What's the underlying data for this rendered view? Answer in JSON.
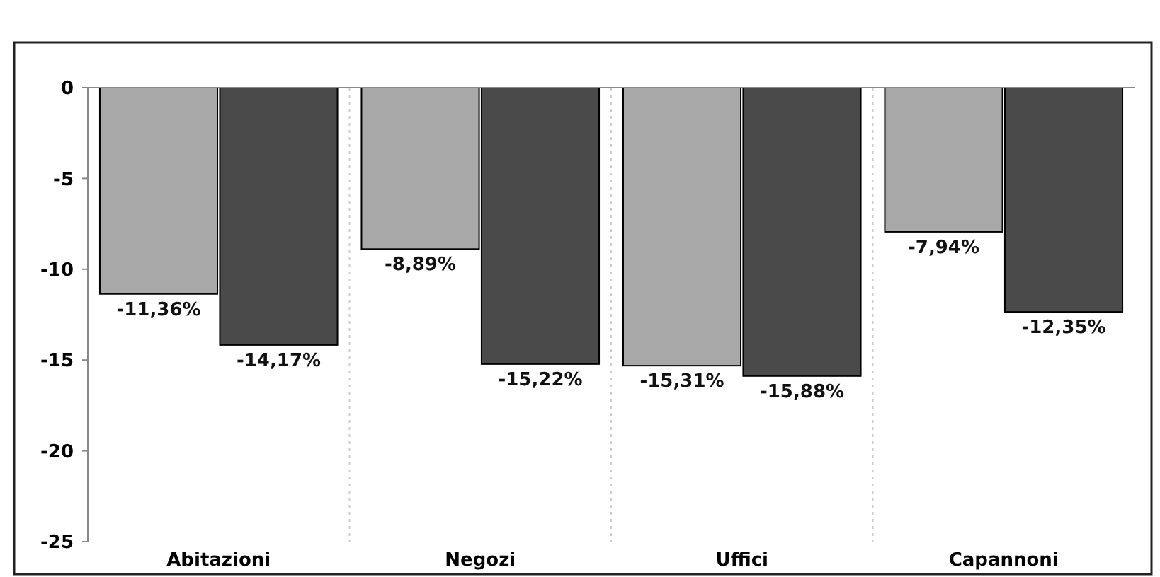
{
  "chart_data": {
    "type": "bar",
    "categories": [
      "Abitazioni",
      "Negozi",
      "Uffici",
      "Capannoni"
    ],
    "series": [
      {
        "color": "#a8a8a8",
        "values": [
          -11.36,
          -8.89,
          -15.31,
          -7.94
        ],
        "value_labels": [
          "-11,36%",
          "-8,89%",
          "-15,31%",
          "-7,94%"
        ]
      },
      {
        "color": "#4a4a4a",
        "values": [
          -14.17,
          -15.22,
          -15.88,
          -12.35
        ],
        "value_labels": [
          "-14,17%",
          "-15,22%",
          "-15,88%",
          "-12,35%"
        ]
      }
    ],
    "ylim": [
      -25,
      0
    ],
    "yticks": [
      -25,
      -20,
      -15,
      -10,
      -5,
      0
    ]
  }
}
